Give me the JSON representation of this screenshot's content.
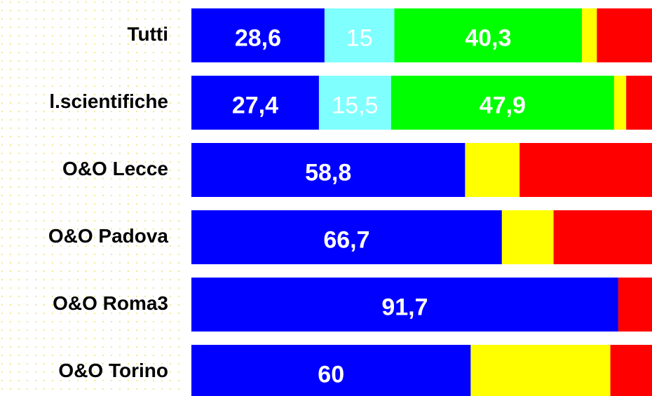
{
  "chart_data": {
    "type": "stacked-bar-horizontal",
    "categories": [
      "Tutti",
      "l.scientifiche",
      "O&O Lecce",
      "O&O Padova",
      "O&O Roma3",
      "O&O Torino"
    ],
    "xlim": [
      0,
      100
    ],
    "series": [
      {
        "color": "#0000ff",
        "values": [
          28.6,
          27.4,
          58.8,
          66.7,
          91.7,
          60
        ],
        "value_labels": [
          "28,6",
          "27,4",
          "58,8",
          "66,7",
          "91,7",
          "60"
        ],
        "label_weight": "bold"
      },
      {
        "color": "#80ffff",
        "values": [
          15,
          15.5,
          null,
          null,
          null,
          null
        ],
        "value_labels": [
          "15",
          "15,5",
          null,
          null,
          null,
          null
        ],
        "label_weight": "normal"
      },
      {
        "color": "#00ff00",
        "values": [
          40.3,
          47.9,
          null,
          null,
          null,
          null
        ],
        "value_labels": [
          "40,3",
          "47,9",
          null,
          null,
          null,
          null
        ],
        "label_weight": "bold"
      },
      {
        "color": "#ffff00",
        "values": [
          3.2,
          2.6,
          11.7,
          11.1,
          null,
          30
        ]
      },
      {
        "color": "#ff0000",
        "values": [
          12.9,
          6.6,
          29.5,
          22.2,
          8.3,
          10
        ]
      }
    ]
  }
}
